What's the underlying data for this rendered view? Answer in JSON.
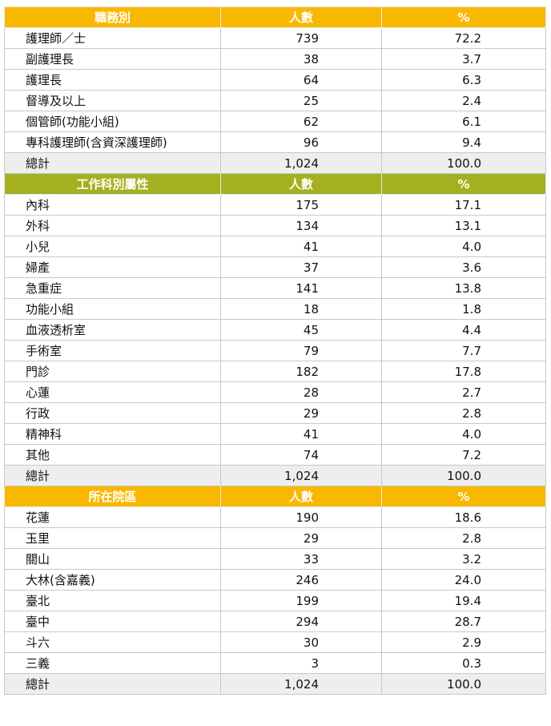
{
  "colors": {
    "orange_header": "#f9b800",
    "green_header": "#a4b01f",
    "total_row": "#eeeeee"
  },
  "sections": [
    {
      "header": [
        "職務別",
        "人數",
        "%"
      ],
      "color": "orange",
      "rows": [
        [
          "護理師／士",
          "739",
          "72.2"
        ],
        [
          "副護理長",
          "38",
          "3.7"
        ],
        [
          "護理長",
          "64",
          "6.3"
        ],
        [
          "督導及以上",
          "25",
          "2.4"
        ],
        [
          "個管師(功能小組)",
          "62",
          "6.1"
        ],
        [
          "專科護理師(含資深護理師)",
          "96",
          "9.4"
        ]
      ],
      "total": [
        "總計",
        "1,024",
        "100.0"
      ]
    },
    {
      "header": [
        "工作科別屬性",
        "人數",
        "%"
      ],
      "color": "green",
      "rows": [
        [
          "內科",
          "175",
          "17.1"
        ],
        [
          "外科",
          "134",
          "13.1"
        ],
        [
          "小兒",
          "41",
          "4.0"
        ],
        [
          "婦產",
          "37",
          "3.6"
        ],
        [
          "急重症",
          "141",
          "13.8"
        ],
        [
          "功能小組",
          "18",
          "1.8"
        ],
        [
          "血液透析室",
          "45",
          "4.4"
        ],
        [
          "手術室",
          "79",
          "7.7"
        ],
        [
          "門診",
          "182",
          "17.8"
        ],
        [
          "心蓮",
          "28",
          "2.7"
        ],
        [
          "行政",
          "29",
          "2.8"
        ],
        [
          "精神科",
          "41",
          "4.0"
        ],
        [
          "其他",
          "74",
          "7.2"
        ]
      ],
      "total": [
        "總計",
        "1,024",
        "100.0"
      ]
    },
    {
      "header": [
        "所在院區",
        "人數",
        "%"
      ],
      "color": "orange",
      "rows": [
        [
          "花蓮",
          "190",
          "18.6"
        ],
        [
          "玉里",
          "29",
          "2.8"
        ],
        [
          "關山",
          "33",
          "3.2"
        ],
        [
          "大林(含嘉義)",
          "246",
          "24.0"
        ],
        [
          "臺北",
          "199",
          "19.4"
        ],
        [
          "臺中",
          "294",
          "28.7"
        ],
        [
          "斗六",
          "30",
          "2.9"
        ],
        [
          "三義",
          "3",
          "0.3"
        ]
      ],
      "total": [
        "總計",
        "1,024",
        "100.0"
      ]
    }
  ]
}
